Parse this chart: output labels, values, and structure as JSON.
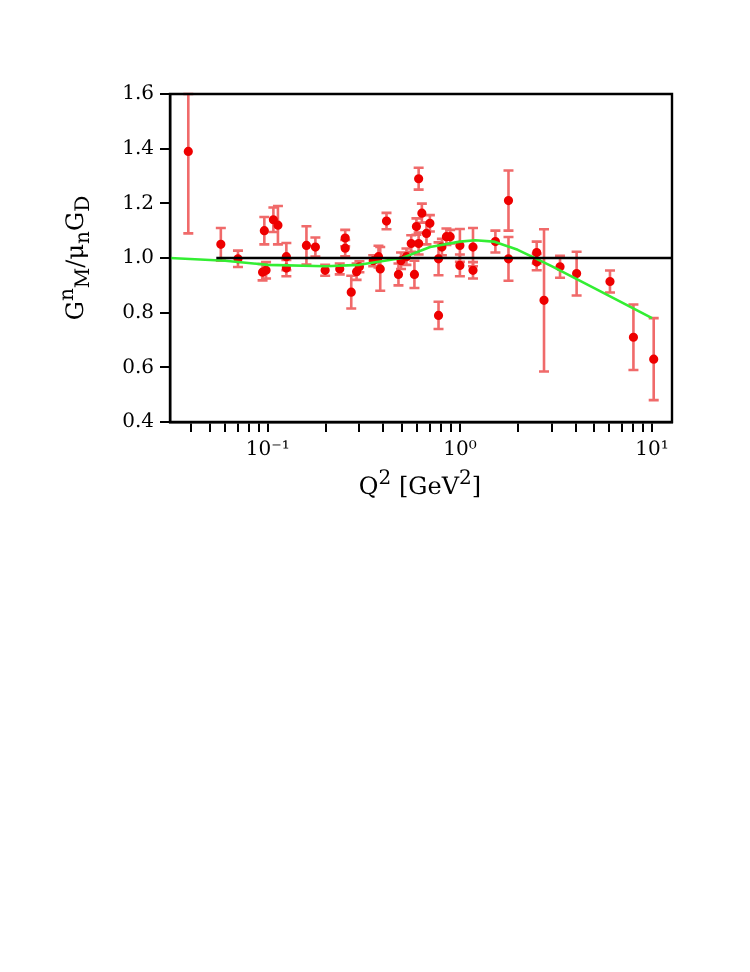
{
  "chart_data": {
    "type": "scatter",
    "xlabel": "Q$^{2}$ [GeV$^{2}$]",
    "ylabel": "G$^{n}$$_{M}$/μ$_{n}$G$_{D}$",
    "log": "x",
    "grid": false,
    "legend": false,
    "marker": "circle",
    "xlim": [
      0.031,
      12.7
    ],
    "ylim": [
      0.4,
      1.6
    ],
    "xticks": [
      {
        "value": 0.04,
        "label": null
      },
      {
        "value": 0.05,
        "label": null
      },
      {
        "value": 0.06,
        "label": null
      },
      {
        "value": 0.07,
        "label": null
      },
      {
        "value": 0.08,
        "label": null
      },
      {
        "value": 0.09,
        "label": null
      },
      {
        "value": 0.1,
        "label": "10⁻¹"
      },
      {
        "value": 0.2,
        "label": null
      },
      {
        "value": 0.3,
        "label": null
      },
      {
        "value": 0.4,
        "label": null
      },
      {
        "value": 0.5,
        "label": null
      },
      {
        "value": 0.6,
        "label": null
      },
      {
        "value": 0.7,
        "label": null
      },
      {
        "value": 0.8,
        "label": null
      },
      {
        "value": 0.9,
        "label": null
      },
      {
        "value": 1,
        "label": "10⁰"
      },
      {
        "value": 2,
        "label": null
      },
      {
        "value": 3,
        "label": null
      },
      {
        "value": 4,
        "label": null
      },
      {
        "value": 5,
        "label": null
      },
      {
        "value": 6,
        "label": null
      },
      {
        "value": 7,
        "label": null
      },
      {
        "value": 8,
        "label": null
      },
      {
        "value": 9,
        "label": null
      },
      {
        "value": 10,
        "label": "10¹"
      }
    ],
    "yticks": [
      {
        "value": 0.4,
        "label": "0.4"
      },
      {
        "value": 0.6,
        "label": "0.6"
      },
      {
        "value": 0.8,
        "label": "0.8"
      },
      {
        "value": 1,
        "label": "1.0"
      },
      {
        "value": 1.2,
        "label": "1.2"
      },
      {
        "value": 1.4,
        "label": "1.4"
      },
      {
        "value": 1.6,
        "label": "1.6"
      }
    ],
    "series": [
      {
        "type": "line",
        "color": "#000000",
        "marker": "none",
        "x": [
          0.054,
          12.7
        ],
        "values": [
          1,
          1
        ]
      },
      {
        "type": "line",
        "color": "#33ee33",
        "marker": "none",
        "x": [
          0.031,
          0.06,
          0.1,
          0.2,
          0.3,
          0.5,
          0.7,
          1.0,
          1.2,
          1.5,
          2.0,
          3.0,
          5.0,
          10.0
        ],
        "values": [
          1.0,
          0.99,
          0.975,
          0.97,
          0.975,
          1.0,
          1.04,
          1.06,
          1.065,
          1.06,
          1.03,
          0.97,
          0.89,
          0.78
        ]
      },
      {
        "type": "scatter",
        "color": "#ee0000",
        "x": [
          0.0386,
          0.057,
          0.07,
          0.096,
          0.094,
          0.098,
          0.107,
          0.113,
          0.125,
          0.125,
          0.159,
          0.177,
          0.199,
          0.237,
          0.253,
          0.253,
          0.272,
          0.29,
          0.3,
          0.354,
          0.377,
          0.385,
          0.415,
          0.479,
          0.494,
          0.527,
          0.558,
          0.58,
          0.594,
          0.61,
          0.61,
          0.634,
          0.67,
          0.698,
          0.774,
          0.774,
          0.806,
          0.851,
          0.89,
          1.0,
          1.0,
          1.17,
          1.17,
          1.53,
          1.79,
          1.79,
          2.51,
          2.51,
          2.74,
          3.32,
          4.05,
          6.04,
          8.0,
          10.2
        ],
        "values": [
          1.39,
          1.05,
          0.997,
          1.1,
          0.948,
          0.955,
          1.14,
          1.12,
          1.005,
          0.963,
          1.046,
          1.04,
          0.955,
          0.96,
          1.073,
          1.036,
          0.875,
          0.95,
          0.968,
          0.99,
          1.005,
          0.96,
          1.135,
          0.94,
          0.99,
          1.005,
          1.053,
          0.94,
          1.115,
          1.29,
          1.053,
          1.164,
          1.09,
          1.127,
          0.997,
          0.79,
          1.04,
          1.078,
          1.078,
          1.046,
          0.973,
          1.04,
          0.955,
          1.06,
          1.21,
          0.997,
          1.02,
          0.985,
          0.845,
          0.968,
          0.943,
          0.914,
          0.71,
          0.63
        ],
        "errors": [
          [
            1.09,
            1.6
          ],
          0.06,
          0.03,
          0.05,
          0.03,
          0.03,
          0.045,
          0.07,
          0.05,
          0.03,
          0.07,
          0.035,
          0.02,
          0.02,
          0.03,
          0.03,
          0.06,
          0.03,
          0.02,
          0.02,
          0.04,
          0.08,
          0.03,
          0.04,
          0.03,
          0.03,
          0.03,
          0.05,
          0.03,
          0.04,
          0.04,
          0.035,
          0.04,
          0.03,
          0.06,
          0.05,
          0.03,
          0.03,
          0.025,
          0.06,
          0.04,
          0.07,
          0.03,
          0.04,
          0.11,
          0.08,
          0.04,
          0.03,
          0.26,
          0.04,
          0.08,
          0.04,
          0.12,
          0.15
        ]
      }
    ]
  }
}
